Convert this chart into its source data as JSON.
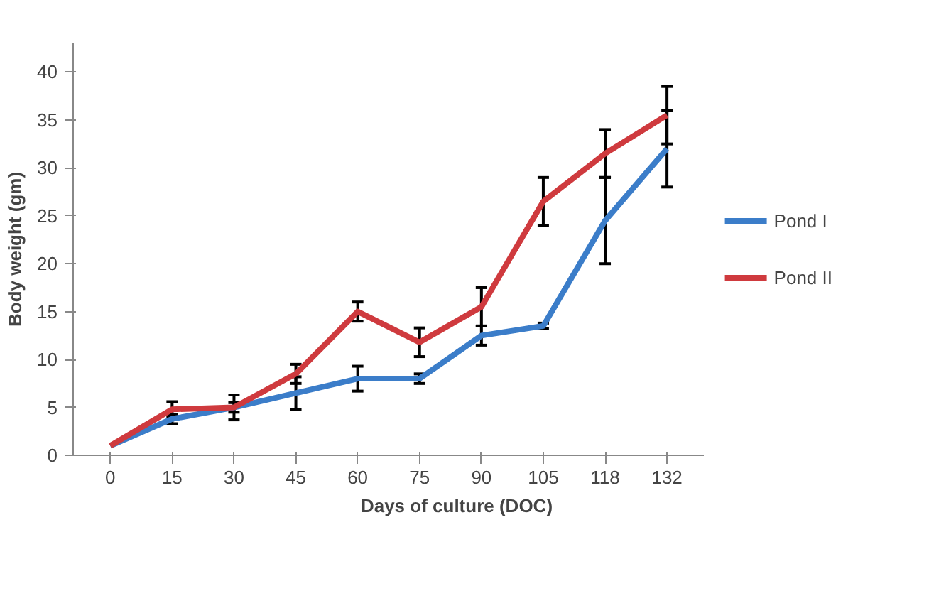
{
  "chart_data": {
    "type": "line",
    "xlabel": "Days of culture (DOC)",
    "ylabel": "Body weight (gm)",
    "categories": [
      "0",
      "15",
      "30",
      "45",
      "60",
      "75",
      "90",
      "105",
      "118",
      "132"
    ],
    "ylim": [
      0,
      43
    ],
    "yticks": [
      0,
      5,
      10,
      15,
      20,
      25,
      30,
      35,
      40
    ],
    "grid": false,
    "legend": "right",
    "marker": "none",
    "line_style": "solid",
    "series": [
      {
        "name": "Pond I",
        "color": "#3b7dc9",
        "values": [
          1,
          3.8,
          5,
          6.5,
          8,
          8,
          12.5,
          13.5,
          24.5,
          32
        ],
        "errors": [
          null,
          0.5,
          0.5,
          1.7,
          1.3,
          0.5,
          1,
          0.3,
          4.5,
          4
        ]
      },
      {
        "name": "Pond II",
        "color": "#cf3a3e",
        "values": [
          1,
          4.8,
          5,
          8.5,
          15,
          11.8,
          15.5,
          26.5,
          31.5,
          35.5
        ],
        "errors": [
          null,
          0.8,
          1.3,
          1,
          1,
          1.5,
          2,
          2.5,
          2.5,
          3
        ]
      }
    ]
  }
}
